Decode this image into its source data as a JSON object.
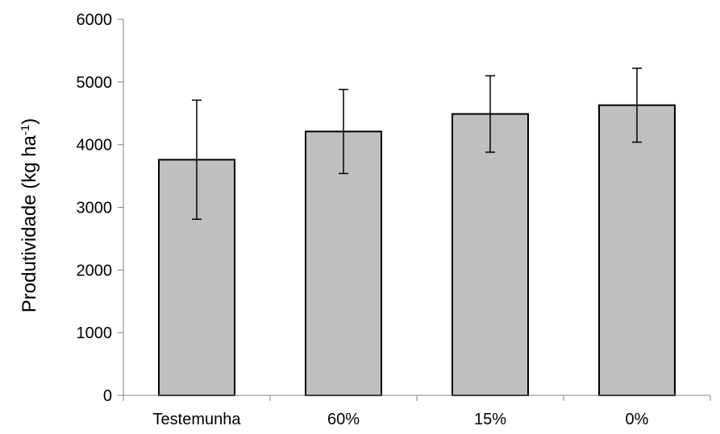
{
  "chart_data": {
    "type": "bar",
    "categories": [
      "Testemunha",
      "60%",
      "15%",
      "0%"
    ],
    "values": [
      3760,
      4210,
      4490,
      4630
    ],
    "error": [
      950,
      670,
      610,
      590
    ],
    "ylabel_text": "Produtividade (kg ha",
    "ylabel_sup": "-1",
    "ylabel_close": ")",
    "xlabel": "",
    "title": "",
    "ylim": [
      0,
      6000
    ],
    "yticks": [
      0,
      1000,
      2000,
      3000,
      4000,
      5000,
      6000
    ],
    "grid": false,
    "bar_color": "#bfbfbf",
    "edge_color": "#000000"
  }
}
